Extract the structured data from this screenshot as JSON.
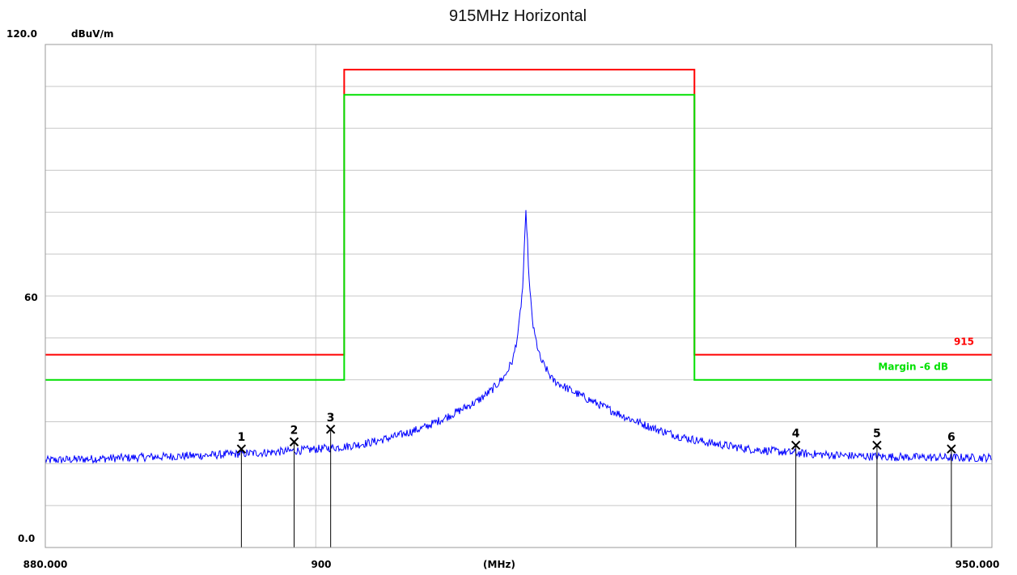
{
  "chart_data": {
    "type": "line",
    "title": "915MHz Horizontal",
    "unit_label": "dBuV/m",
    "xlabel": "(MHz)",
    "xlim": [
      880,
      950
    ],
    "ylim": [
      0,
      120
    ],
    "y_tick_labels": {
      "top": "120.0",
      "mid": "60",
      "bottom": "0.0"
    },
    "x_tick_labels": {
      "left": "880.000",
      "mid": "900",
      "right": "950.000"
    },
    "x_gridlines": [
      900
    ],
    "y_gridlines_step": 10,
    "grid": true,
    "series": [
      {
        "name": "915",
        "color": "#ff0000",
        "points": [
          [
            880,
            46
          ],
          [
            902.1,
            46
          ],
          [
            902.1,
            114
          ],
          [
            928,
            114
          ],
          [
            928,
            46
          ],
          [
            950,
            46
          ]
        ]
      },
      {
        "name": "Margin -6 dB",
        "color": "#00e000",
        "points": [
          [
            880,
            40
          ],
          [
            902.1,
            40
          ],
          [
            902.1,
            108
          ],
          [
            928,
            108
          ],
          [
            928,
            40
          ],
          [
            950,
            40
          ]
        ]
      },
      {
        "color": "#0000ff",
        "points": [
          [
            880,
            20.8
          ],
          [
            884,
            21.2
          ],
          [
            888,
            21.6
          ],
          [
            892,
            22.0
          ],
          [
            896,
            22.6
          ],
          [
            899,
            23.2
          ],
          [
            902,
            24.0
          ],
          [
            904,
            25.0
          ],
          [
            906,
            26.6
          ],
          [
            908,
            28.6
          ],
          [
            910,
            31.6
          ],
          [
            912,
            35.0
          ],
          [
            913,
            37.5
          ],
          [
            914,
            41.0
          ],
          [
            914.6,
            45.0
          ],
          [
            915,
            52.0
          ],
          [
            915.3,
            62.0
          ],
          [
            915.55,
            80.5
          ],
          [
            915.8,
            62.0
          ],
          [
            916.1,
            52.0
          ],
          [
            916.6,
            45.0
          ],
          [
            917.5,
            40.0
          ],
          [
            919,
            37.2
          ],
          [
            921,
            34.0
          ],
          [
            923,
            31.0
          ],
          [
            925,
            28.4
          ],
          [
            927,
            26.4
          ],
          [
            929,
            25.0
          ],
          [
            932,
            23.5
          ],
          [
            936,
            22.4
          ],
          [
            940,
            21.8
          ],
          [
            945,
            21.5
          ],
          [
            950,
            21.4
          ]
        ]
      }
    ],
    "markers": [
      {
        "label": "1",
        "x": 894.5,
        "y": 23.5
      },
      {
        "label": "2",
        "x": 898.4,
        "y": 25.2
      },
      {
        "label": "3",
        "x": 901.1,
        "y": 28.2
      },
      {
        "label": "4",
        "x": 935.5,
        "y": 24.4
      },
      {
        "label": "5",
        "x": 941.5,
        "y": 24.4
      },
      {
        "label": "6",
        "x": 947.0,
        "y": 23.5
      }
    ]
  }
}
